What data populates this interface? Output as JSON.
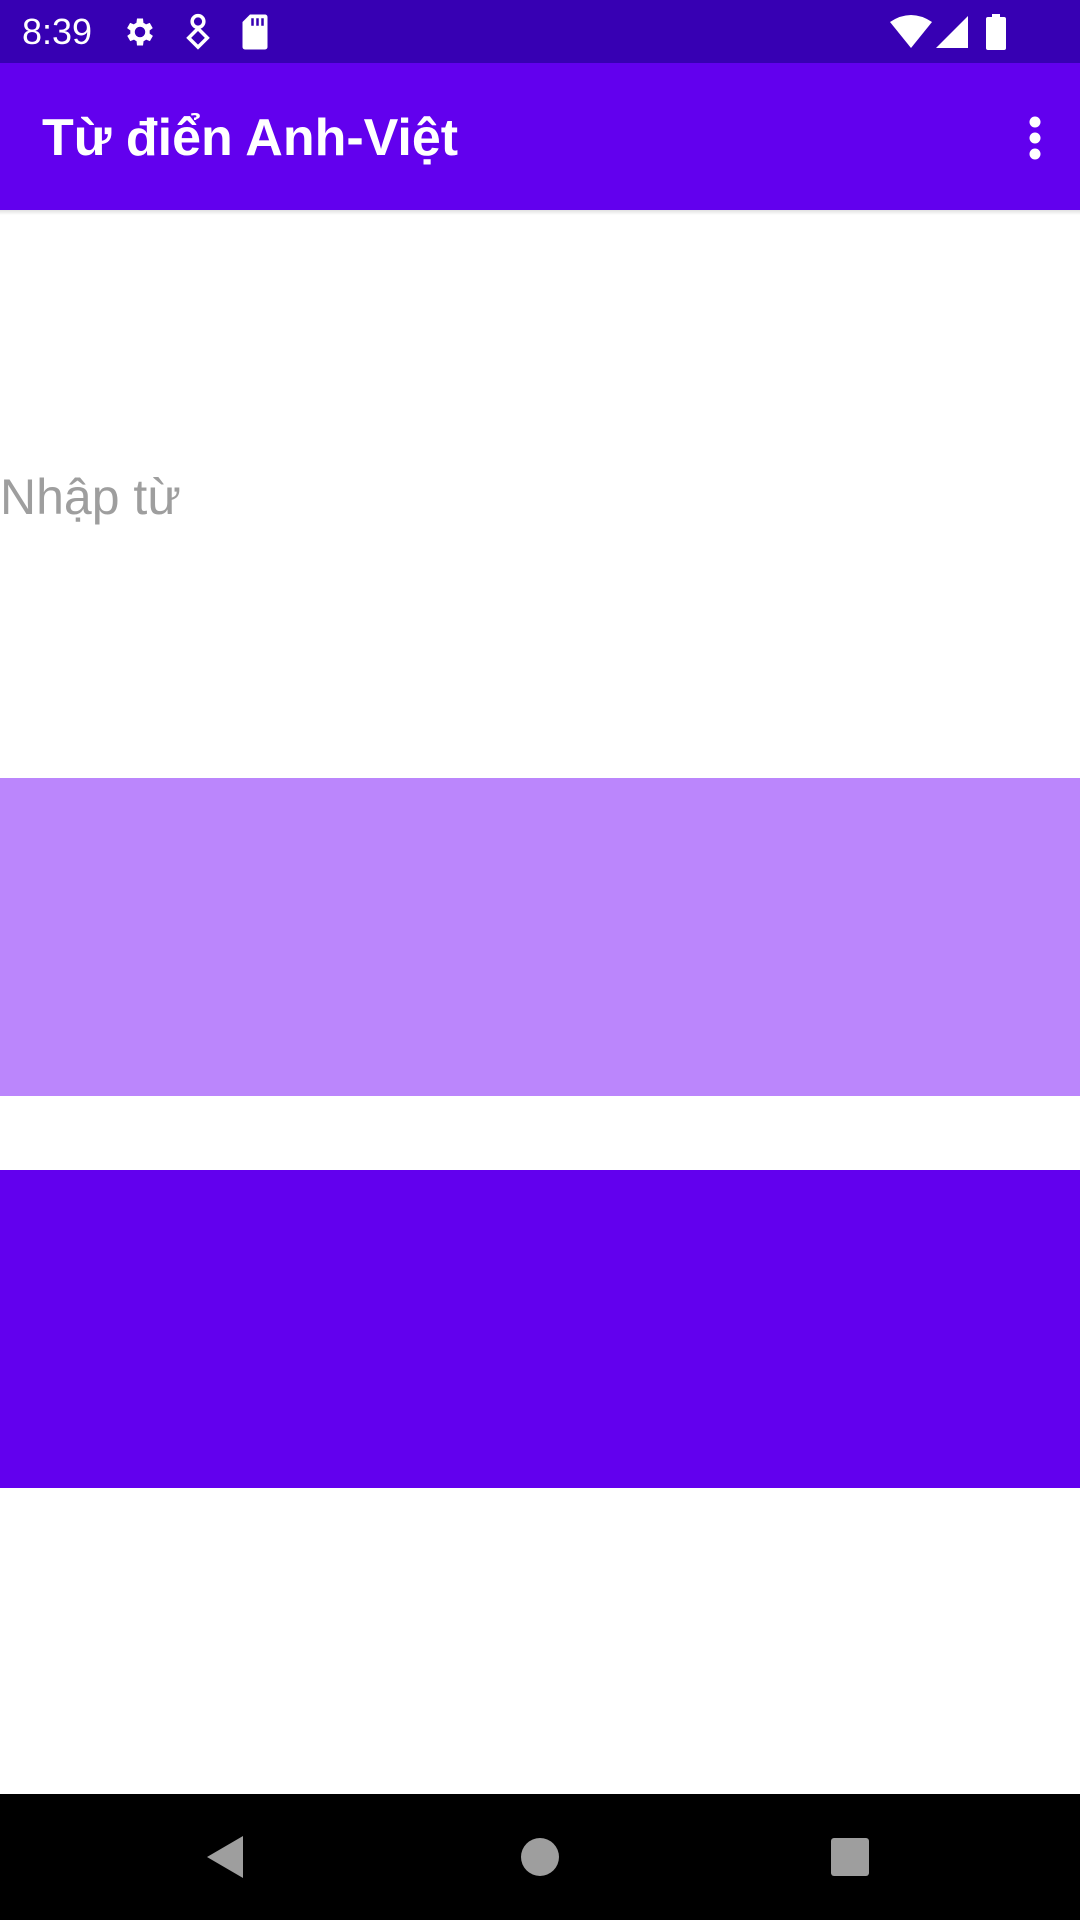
{
  "colors": {
    "status_bar": "#3700b3",
    "app_bar": "#6200ee",
    "button_light": "#bb86fc",
    "button_dark": "#6200ee",
    "nav_bar": "#000000",
    "nav_icon": "#9e9e9e"
  },
  "status_bar": {
    "time": "8:39",
    "left_icons": [
      "gear-icon",
      "location-pin-icon",
      "sd-card-icon"
    ],
    "right_icons": [
      "wifi-icon",
      "cell-signal-icon",
      "battery-icon"
    ]
  },
  "app_bar": {
    "title": "Từ điển Anh-Việt",
    "overflow_icon": "more-vert-icon"
  },
  "search": {
    "placeholder": "Nhập từ",
    "value": ""
  },
  "nav": {
    "back_icon": "back-triangle-icon",
    "home_icon": "home-circle-icon",
    "recents_icon": "recents-square-icon"
  }
}
